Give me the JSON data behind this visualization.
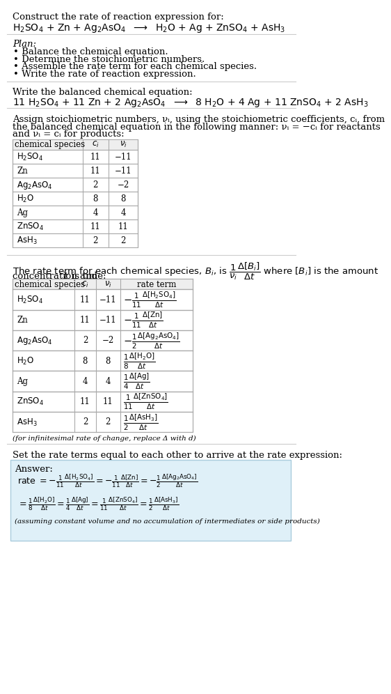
{
  "bg_color": "#ffffff",
  "title": "Construct the rate of reaction expression for:",
  "rxn_unbalanced": "H₂SO₄ + Zn + Ag₂AsO₄ ⟶ H₂O + Ag + ZnSO₄ + AsH₃",
  "plan_label": "Plan:",
  "plan_items": [
    "• Balance the chemical equation.",
    "• Determine the stoichiometric numbers.",
    "• Assemble the rate term for each chemical species.",
    "• Write the rate of reaction expression."
  ],
  "balanced_label": "Write the balanced chemical equation:",
  "balanced_eq": "11 H₂SO₄ + 11 Zn + 2 Ag₂AsO₄ ⟶  8 H₂O + 4 Ag + 11 ZnSO₄ + 2 AsH₃",
  "stoich_para": [
    "Assign stoichiometric numbers, νᵢ, using the stoichiometric coefficients, cᵢ, from",
    "the balanced chemical equation in the following manner: νᵢ = −cᵢ for reactants",
    "and νᵢ = cᵢ for products:"
  ],
  "table1_species": [
    "H₂SO₄",
    "Zn",
    "Ag₂AsO₄",
    "H₂O",
    "Ag",
    "ZnSO₄",
    "AsH₃"
  ],
  "table1_ci": [
    "11",
    "11",
    "2",
    "8",
    "4",
    "11",
    "2"
  ],
  "table1_ni": [
    "−11",
    "−11",
    "−2",
    "8",
    "4",
    "11",
    "2"
  ],
  "rate_para1": "The rate term for each chemical species, Bᵢ, is",
  "rate_para2": "where [Bᵢ] is the amount",
  "rate_para3": "concentration and t is time:",
  "table2_species": [
    "H₂SO₄",
    "Zn",
    "Ag₂AsO₄",
    "H₂O",
    "Ag",
    "ZnSO₄",
    "AsH₃"
  ],
  "table2_ci": [
    "11",
    "11",
    "2",
    "8",
    "4",
    "11",
    "2"
  ],
  "table2_ni": [
    "−11",
    "−11",
    "−2",
    "8",
    "4",
    "11",
    "2"
  ],
  "infinitesimal": "(for infinitesimal rate of change, replace Δ with d)",
  "answer_header": "Set the rate terms equal to each other to arrive at the rate expression:",
  "answer_label": "Answer:",
  "answer_note": "(assuming constant volume and no accumulation of intermediates or side products)",
  "answer_bg": "#dff0f8",
  "answer_border": "#88bbcc"
}
